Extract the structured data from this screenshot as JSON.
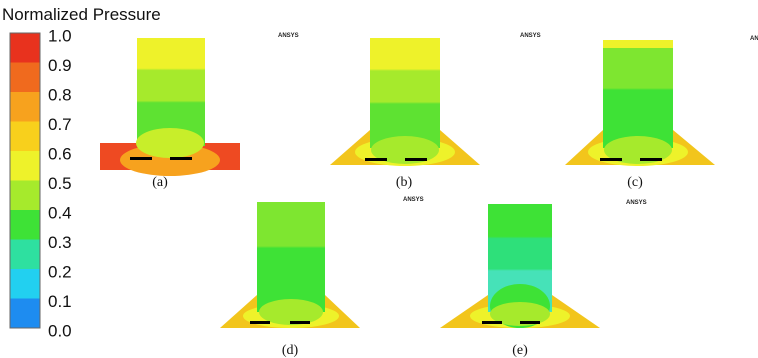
{
  "legend": {
    "title": "Normalized Pressure",
    "ticks": [
      "1.0",
      "0.9",
      "0.8",
      "0.7",
      "0.6",
      "0.5",
      "0.4",
      "0.3",
      "0.2",
      "0.1",
      "0.0"
    ]
  },
  "panels": [
    {
      "label": "(a)",
      "logo": "ANSYS"
    },
    {
      "label": "(b)",
      "logo": "ANSYS"
    },
    {
      "label": "(c)",
      "logo": "ANSYS"
    },
    {
      "label": "(d)",
      "logo": "ANSYS"
    },
    {
      "label": "(e)",
      "logo": "ANSYS"
    }
  ]
}
